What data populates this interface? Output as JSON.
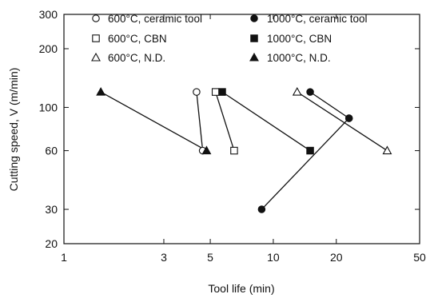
{
  "chart_data": {
    "type": "scatter",
    "title": "",
    "xlabel": "Tool life (min)",
    "ylabel": "Cutting speed, V (m/min)",
    "x_scale": "log",
    "y_scale": "log",
    "xlim": [
      1,
      50
    ],
    "ylim": [
      20,
      300
    ],
    "x_ticks": [
      1,
      3,
      5,
      10,
      20,
      50
    ],
    "x_tick_labels": [
      "1",
      "3",
      "5",
      "10",
      "20",
      "50"
    ],
    "y_ticks": [
      20,
      30,
      60,
      100,
      200,
      300
    ],
    "y_tick_labels": [
      "20",
      "30",
      "60",
      "100",
      "200",
      "300"
    ],
    "grid": false,
    "legend_position": "top",
    "series": [
      {
        "name": "600°C, ceramic tool",
        "marker": "circle-open",
        "x": [
          4.3,
          4.6
        ],
        "y": [
          120,
          60
        ]
      },
      {
        "name": "1000°C, ceramic tool",
        "marker": "circle-filled",
        "x": [
          8.8,
          23
        ],
        "y": [
          30,
          88
        ]
      },
      {
        "name": "600°C, CBN",
        "marker": "square-open",
        "x": [
          5.3,
          6.5
        ],
        "y": [
          120,
          60
        ]
      },
      {
        "name": "1000°C, CBN",
        "marker": "square-filled",
        "x": [
          5.7,
          15
        ],
        "y": [
          120,
          60
        ]
      },
      {
        "name": "600°C, N.D.",
        "marker": "triangle-open",
        "x": [
          13,
          35
        ],
        "y": [
          120,
          60
        ]
      },
      {
        "name": "1000°C, N.D.",
        "marker": "triangle-filled",
        "x": [
          1.5,
          4.8
        ],
        "y": [
          120,
          60
        ]
      }
    ],
    "extra_lines": [
      {
        "marker": "circle-filled",
        "x": [
          15,
          23
        ],
        "y": [
          120,
          88
        ]
      }
    ]
  }
}
